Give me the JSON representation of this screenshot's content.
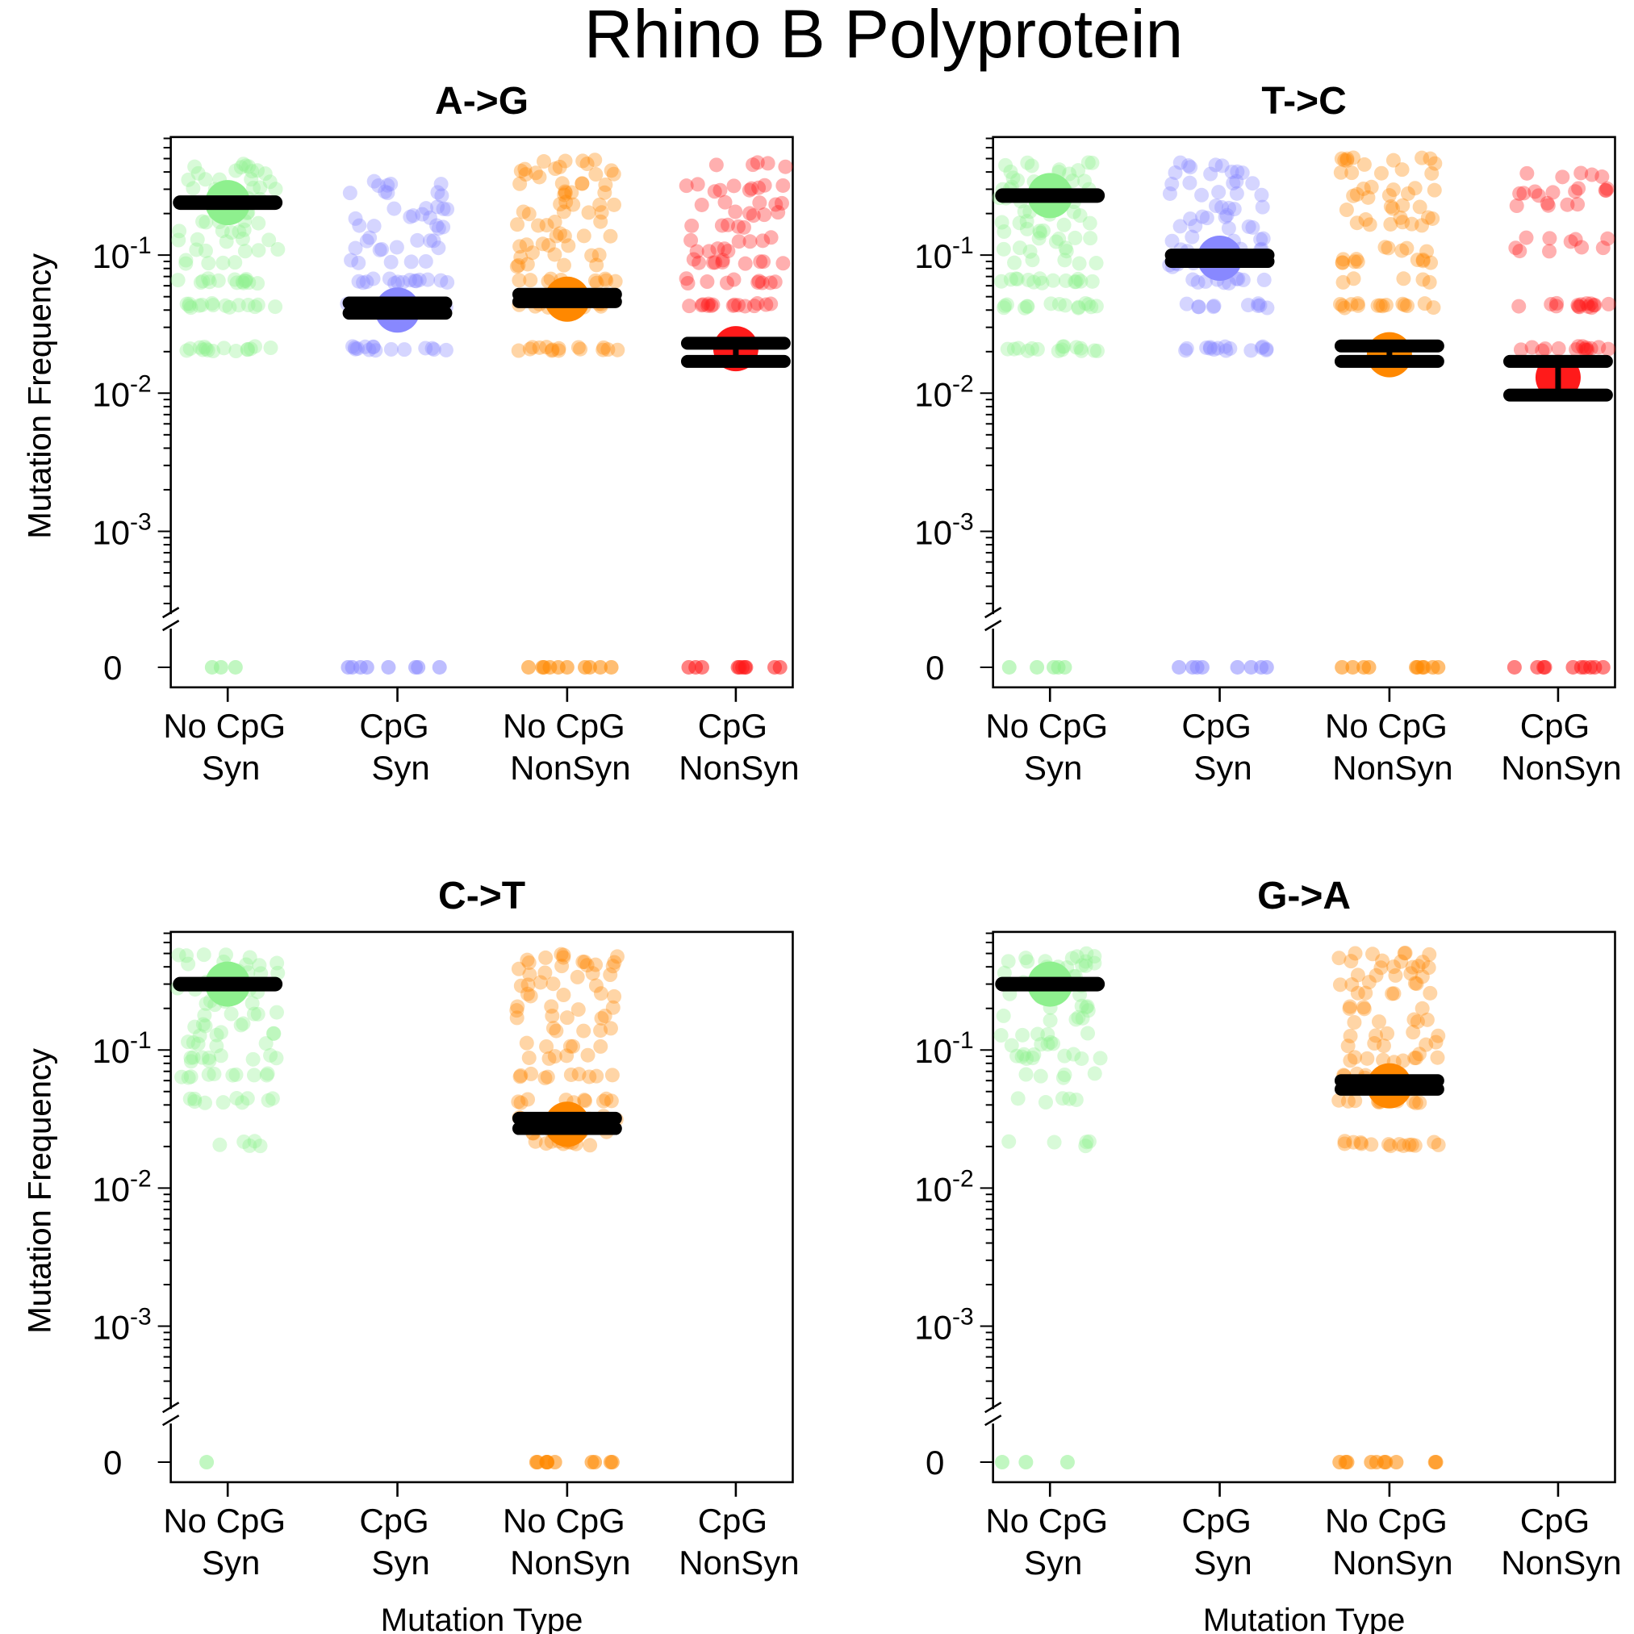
{
  "figure": {
    "title": "Rhino B Polyprotein"
  },
  "colors": {
    "No CpG Syn": "#8ef08e",
    "CpG Syn": "#8888ff",
    "No CpG NonSyn": "#ff8800",
    "CpG NonSyn": "#ff1a1a",
    "summary_bar": "#000000"
  },
  "chart_data": [
    {
      "type": "scatter",
      "title": "A->G",
      "xlabel": "",
      "ylabel": "Mutation Frequency",
      "y_scale": "log with broken axis at zero",
      "ylim": [
        0.0002,
        0.6
      ],
      "yticks": [
        "10-1",
        "10-2",
        "10-3",
        "0"
      ],
      "categories": [
        "No CpG\nSyn",
        "CpG\nSyn",
        "No CpG\nNonSyn",
        "CpG\nNonSyn"
      ],
      "series": [
        {
          "category": "No CpG Syn",
          "mean": 0.24,
          "points": [
            0.45,
            0.4,
            0.35,
            0.3,
            0.25,
            0.2,
            0.17,
            0.15,
            0.13,
            0.11,
            0.09,
            0.065,
            0.065,
            0.065,
            0.043,
            0.043,
            0.043,
            0.021,
            0.021,
            0.021
          ],
          "zeros": 3
        },
        {
          "category": "CpG Syn",
          "mean": 0.04,
          "ci": [
            0.038,
            0.045
          ],
          "points": [
            0.33,
            0.28,
            0.22,
            0.19,
            0.16,
            0.13,
            0.11,
            0.09,
            0.065,
            0.065,
            0.065,
            0.043,
            0.043,
            0.043,
            0.021,
            0.021,
            0.021
          ],
          "zeros": 8
        },
        {
          "category": "No CpG NonSyn",
          "mean": 0.048,
          "ci": [
            0.046,
            0.052
          ],
          "points": [
            0.47,
            0.42,
            0.38,
            0.33,
            0.28,
            0.24,
            0.2,
            0.17,
            0.14,
            0.12,
            0.1,
            0.085,
            0.065,
            0.065,
            0.043,
            0.043,
            0.021,
            0.021,
            0.021
          ],
          "zeros": 10
        },
        {
          "category": "CpG NonSyn",
          "mean": 0.021,
          "ci": [
            0.017,
            0.023
          ],
          "points": [
            0.45,
            0.33,
            0.3,
            0.24,
            0.2,
            0.16,
            0.13,
            0.11,
            0.09,
            0.09,
            0.065,
            0.065,
            0.043,
            0.043,
            0.043
          ],
          "zeros": 10
        }
      ]
    },
    {
      "type": "scatter",
      "title": "T->C",
      "xlabel": "",
      "ylabel": "Mutation Frequency",
      "y_scale": "log with broken axis at zero",
      "ylim": [
        0.0002,
        0.6
      ],
      "yticks": [
        "10-1",
        "10-2",
        "10-3",
        "0"
      ],
      "categories": [
        "No CpG\nSyn",
        "CpG\nSyn",
        "No CpG\nNonSyn",
        "CpG\nNonSyn"
      ],
      "series": [
        {
          "category": "No CpG Syn",
          "mean": 0.27,
          "points": [
            0.45,
            0.4,
            0.35,
            0.3,
            0.25,
            0.2,
            0.17,
            0.15,
            0.13,
            0.11,
            0.09,
            0.065,
            0.065,
            0.065,
            0.043,
            0.043,
            0.043,
            0.021,
            0.021,
            0.021
          ],
          "zeros": 5
        },
        {
          "category": "CpG Syn",
          "mean": 0.095,
          "ci": [
            0.09,
            0.1
          ],
          "points": [
            0.45,
            0.4,
            0.33,
            0.28,
            0.22,
            0.19,
            0.16,
            0.13,
            0.11,
            0.09,
            0.085,
            0.065,
            0.065,
            0.043,
            0.043,
            0.021,
            0.021,
            0.021
          ],
          "zeros": 8
        },
        {
          "category": "No CpG NonSyn",
          "mean": 0.019,
          "ci": [
            0.017,
            0.022
          ],
          "points": [
            0.5,
            0.47,
            0.4,
            0.3,
            0.27,
            0.22,
            0.18,
            0.17,
            0.11,
            0.09,
            0.09,
            0.065,
            0.043,
            0.043,
            0.043
          ],
          "zeros": 10
        },
        {
          "category": "CpG NonSyn",
          "mean": 0.013,
          "ci": [
            0.0097,
            0.017
          ],
          "points": [
            0.38,
            0.3,
            0.28,
            0.23,
            0.13,
            0.11,
            0.043,
            0.043,
            0.043,
            0.021,
            0.021,
            0.021
          ],
          "zeros": 10
        }
      ]
    },
    {
      "type": "scatter",
      "title": "C->T",
      "xlabel": "Mutation Type",
      "ylabel": "Mutation Frequency",
      "y_scale": "log with broken axis at zero",
      "ylim": [
        0.0002,
        0.6
      ],
      "yticks": [
        "10-1",
        "10-2",
        "10-3",
        "0"
      ],
      "categories": [
        "No CpG\nSyn",
        "CpG\nSyn",
        "No CpG\nNonSyn",
        "CpG\nNonSyn"
      ],
      "series": [
        {
          "category": "No CpG Syn",
          "mean": 0.3,
          "points": [
            0.48,
            0.42,
            0.37,
            0.32,
            0.27,
            0.22,
            0.18,
            0.15,
            0.13,
            0.11,
            0.09,
            0.085,
            0.065,
            0.065,
            0.043,
            0.043,
            0.021
          ],
          "zeros": 1
        },
        {
          "category": "CpG Syn",
          "mean": null,
          "points": [],
          "zeros": 0
        },
        {
          "category": "No CpG NonSyn",
          "mean": 0.029,
          "ci": [
            0.027,
            0.032
          ],
          "points": [
            0.48,
            0.44,
            0.4,
            0.35,
            0.3,
            0.25,
            0.2,
            0.17,
            0.14,
            0.11,
            0.09,
            0.065,
            0.065,
            0.043,
            0.043,
            0.032,
            0.025,
            0.021,
            0.021
          ],
          "zeros": 10
        },
        {
          "category": "CpG NonSyn",
          "mean": null,
          "points": [],
          "zeros": 0
        }
      ]
    },
    {
      "type": "scatter",
      "title": "G->A",
      "xlabel": "Mutation Type",
      "ylabel": "Mutation Frequency",
      "y_scale": "log with broken axis at zero",
      "ylim": [
        0.0002,
        0.6
      ],
      "yticks": [
        "10-1",
        "10-2",
        "10-3",
        "0"
      ],
      "categories": [
        "No CpG\nSyn",
        "CpG\nSyn",
        "No CpG\nNonSyn",
        "CpG\nNonSyn"
      ],
      "series": [
        {
          "category": "No CpG Syn",
          "mean": 0.3,
          "points": [
            0.48,
            0.44,
            0.4,
            0.35,
            0.3,
            0.25,
            0.2,
            0.17,
            0.13,
            0.11,
            0.09,
            0.09,
            0.065,
            0.043,
            0.021
          ],
          "zeros": 3
        },
        {
          "category": "CpG Syn",
          "mean": null,
          "points": [],
          "zeros": 0
        },
        {
          "category": "No CpG NonSyn",
          "mean": 0.055,
          "ci": [
            0.052,
            0.06
          ],
          "points": [
            0.5,
            0.45,
            0.4,
            0.35,
            0.3,
            0.25,
            0.2,
            0.16,
            0.13,
            0.11,
            0.09,
            0.085,
            0.065,
            0.065,
            0.043,
            0.043,
            0.021,
            0.021,
            0.021
          ],
          "zeros": 10
        },
        {
          "category": "CpG NonSyn",
          "mean": null,
          "points": [],
          "zeros": 0
        }
      ]
    }
  ]
}
